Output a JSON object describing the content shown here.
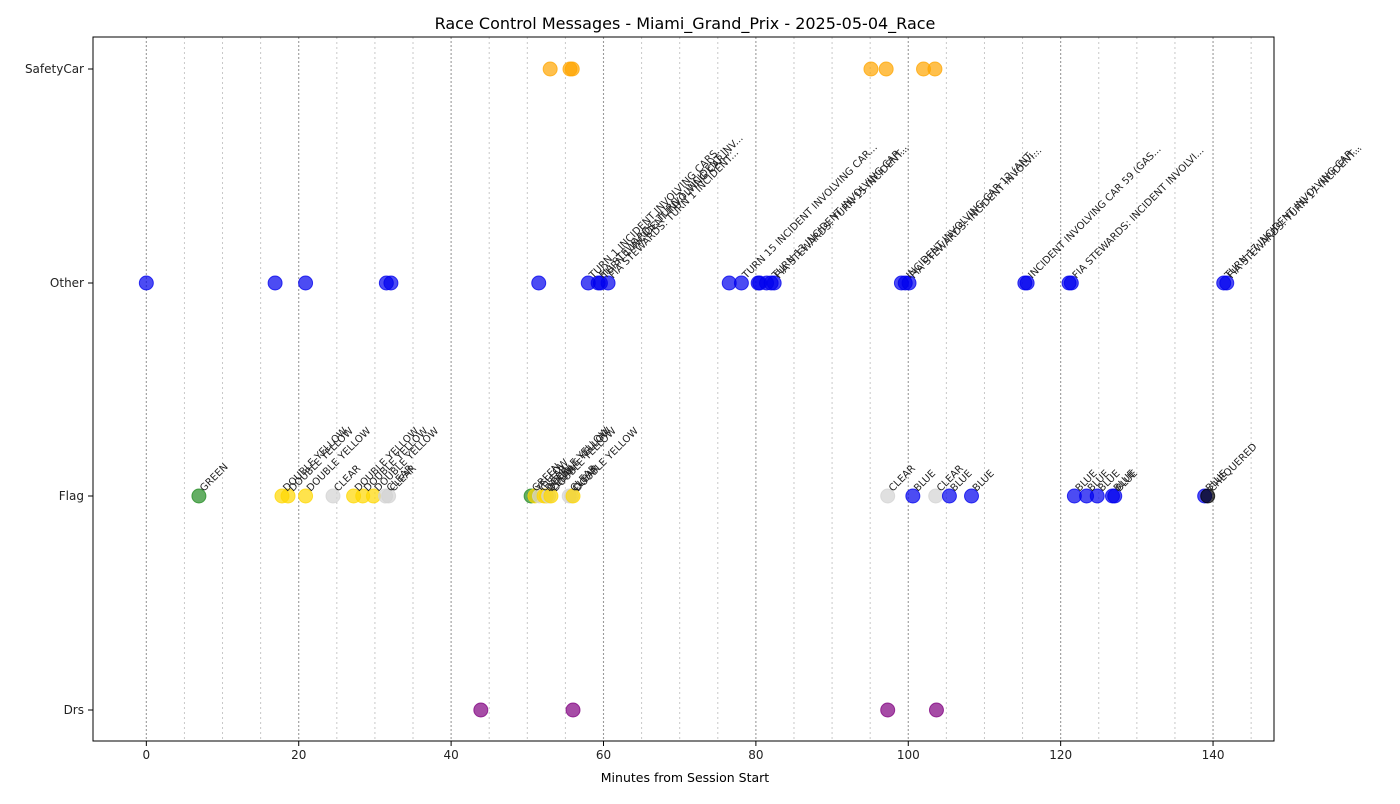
{
  "chart_data": {
    "type": "scatter",
    "title": "Race Control Messages - Miami_Grand_Prix - 2025-05-04_Race",
    "xlabel": "Minutes from Session Start",
    "ylabel": "",
    "xlim": [
      -7,
      148
    ],
    "xticks": [
      0,
      20,
      40,
      60,
      80,
      100,
      120,
      140
    ],
    "minor_gridlines_every": 5,
    "categories": [
      "Drs",
      "Flag",
      "Other",
      "SafetyCar"
    ],
    "colors": {
      "GREEN": "#228B22",
      "YELLOW": "#FFD700",
      "CLEAR": "#D3D3D3",
      "BLUE": "#0000EE",
      "CHEQUERED": "#000000",
      "Other": "#0000EE",
      "SafetyCar": "#FFA500",
      "Drs": "#800080"
    },
    "series": [
      {
        "category": "SafetyCar",
        "points": [
          {
            "x": 53.0
          },
          {
            "x": 55.6
          },
          {
            "x": 55.9
          },
          {
            "x": 95.1
          },
          {
            "x": 97.1
          },
          {
            "x": 102.0
          },
          {
            "x": 103.5
          }
        ]
      },
      {
        "category": "Other",
        "points": [
          {
            "x": 0.0,
            "label": ""
          },
          {
            "x": 16.9,
            "label": ""
          },
          {
            "x": 20.9,
            "label": ""
          },
          {
            "x": 31.5,
            "label": ""
          },
          {
            "x": 32.1,
            "label": ""
          },
          {
            "x": 51.5,
            "label": ""
          },
          {
            "x": 58.0,
            "label": "TURN 1 INCIDENT INVOLVING CARS..."
          },
          {
            "x": 59.3,
            "label": "FIA STEWARDS: TURN 1 INCIDENT INV..."
          },
          {
            "x": 59.6,
            "label": "TURN 1 INCIDENT INVOLVING CAR..."
          },
          {
            "x": 60.6,
            "label": "FIA STEWARDS: TURN 1 INCIDENT..."
          },
          {
            "x": 76.5,
            "label": ""
          },
          {
            "x": 78.1,
            "label": "TURN 15 INCIDENT INVOLVING CAR..."
          },
          {
            "x": 80.3,
            "label": ""
          },
          {
            "x": 80.5,
            "label": ""
          },
          {
            "x": 81.4,
            "label": ""
          },
          {
            "x": 82.0,
            "label": "TURN 13 INCIDENT INVOLVING CAR..."
          },
          {
            "x": 82.4,
            "label": "FIA STEWARDS: TURN 15 INCIDENT..."
          },
          {
            "x": 99.1,
            "label": ""
          },
          {
            "x": 99.6,
            "label": "INCIDENT INVOLVING CAR 12 (ANT..."
          },
          {
            "x": 100.1,
            "label": "FIA STEWARDS: INCIDENT INVOLVI..."
          },
          {
            "x": 115.3,
            "label": ""
          },
          {
            "x": 115.6,
            "label": "INCIDENT INVOLVING CAR 59 (GAS..."
          },
          {
            "x": 121.1,
            "label": ""
          },
          {
            "x": 121.4,
            "label": "FIA STEWARDS: INCIDENT INVOLVI..."
          },
          {
            "x": 141.4,
            "label": "TURN 17 INCIDENT INVOLVING CAR..."
          },
          {
            "x": 141.8,
            "label": "FIA STEWARDS: TURN 17 INCIDENT..."
          }
        ]
      },
      {
        "category": "Flag",
        "points": [
          {
            "x": 6.9,
            "flag": "GREEN",
            "label": "GREEN"
          },
          {
            "x": 17.8,
            "flag": "YELLOW",
            "label": "DOUBLE YELLOW"
          },
          {
            "x": 18.6,
            "flag": "YELLOW",
            "label": "DOUBLE YELLOW"
          },
          {
            "x": 20.9,
            "flag": "YELLOW",
            "label": "DOUBLE YELLOW"
          },
          {
            "x": 24.5,
            "flag": "CLEAR",
            "label": "CLEAR"
          },
          {
            "x": 27.2,
            "flag": "YELLOW",
            "label": "DOUBLE YELLOW"
          },
          {
            "x": 28.4,
            "flag": "YELLOW",
            "label": "DOUBLE YELLOW"
          },
          {
            "x": 29.8,
            "flag": "YELLOW",
            "label": "DOUBLE YELLOW"
          },
          {
            "x": 31.4,
            "flag": "CLEAR",
            "label": "CLEAR"
          },
          {
            "x": 31.8,
            "flag": "CLEAR",
            "label": "CLEAR"
          },
          {
            "x": 50.5,
            "flag": "GREEN",
            "label": "GREEN"
          },
          {
            "x": 51.0,
            "flag": "YELLOW",
            "label": "YELLOW"
          },
          {
            "x": 51.6,
            "flag": "CLEAR",
            "label": "CLEAR"
          },
          {
            "x": 52.2,
            "flag": "YELLOW",
            "label": "DOUBLE YELLOW"
          },
          {
            "x": 52.5,
            "flag": "YELLOW",
            "label": "DOUBLE YELLOW"
          },
          {
            "x": 52.8,
            "flag": "CLEAR",
            "label": "CLEAR"
          },
          {
            "x": 53.1,
            "flag": "YELLOW",
            "label": "DOUBLE YELLOW"
          },
          {
            "x": 55.5,
            "flag": "CLEAR",
            "label": "CLEAR"
          },
          {
            "x": 55.8,
            "flag": "CLEAR",
            "label": "CLEAR"
          },
          {
            "x": 56.0,
            "flag": "YELLOW",
            "label": "DOUBLE YELLOW"
          },
          {
            "x": 97.3,
            "flag": "CLEAR",
            "label": "CLEAR"
          },
          {
            "x": 100.6,
            "flag": "BLUE",
            "label": "BLUE"
          },
          {
            "x": 103.6,
            "flag": "CLEAR",
            "label": "CLEAR"
          },
          {
            "x": 105.4,
            "flag": "BLUE",
            "label": "BLUE"
          },
          {
            "x": 108.3,
            "flag": "BLUE",
            "label": "BLUE"
          },
          {
            "x": 121.8,
            "flag": "BLUE",
            "label": "BLUE"
          },
          {
            "x": 123.4,
            "flag": "BLUE",
            "label": "BLUE"
          },
          {
            "x": 124.8,
            "flag": "BLUE",
            "label": "BLUE"
          },
          {
            "x": 126.8,
            "flag": "BLUE",
            "label": "BLUE"
          },
          {
            "x": 127.1,
            "flag": "BLUE",
            "label": "BLUE"
          },
          {
            "x": 138.9,
            "flag": "BLUE",
            "label": "BLUE"
          },
          {
            "x": 139.3,
            "flag": "CHEQUERED",
            "label": "CHEQUERED"
          }
        ]
      },
      {
        "category": "Drs",
        "points": [
          {
            "x": 43.9
          },
          {
            "x": 56.0
          },
          {
            "x": 97.3
          },
          {
            "x": 103.7
          }
        ]
      }
    ]
  }
}
